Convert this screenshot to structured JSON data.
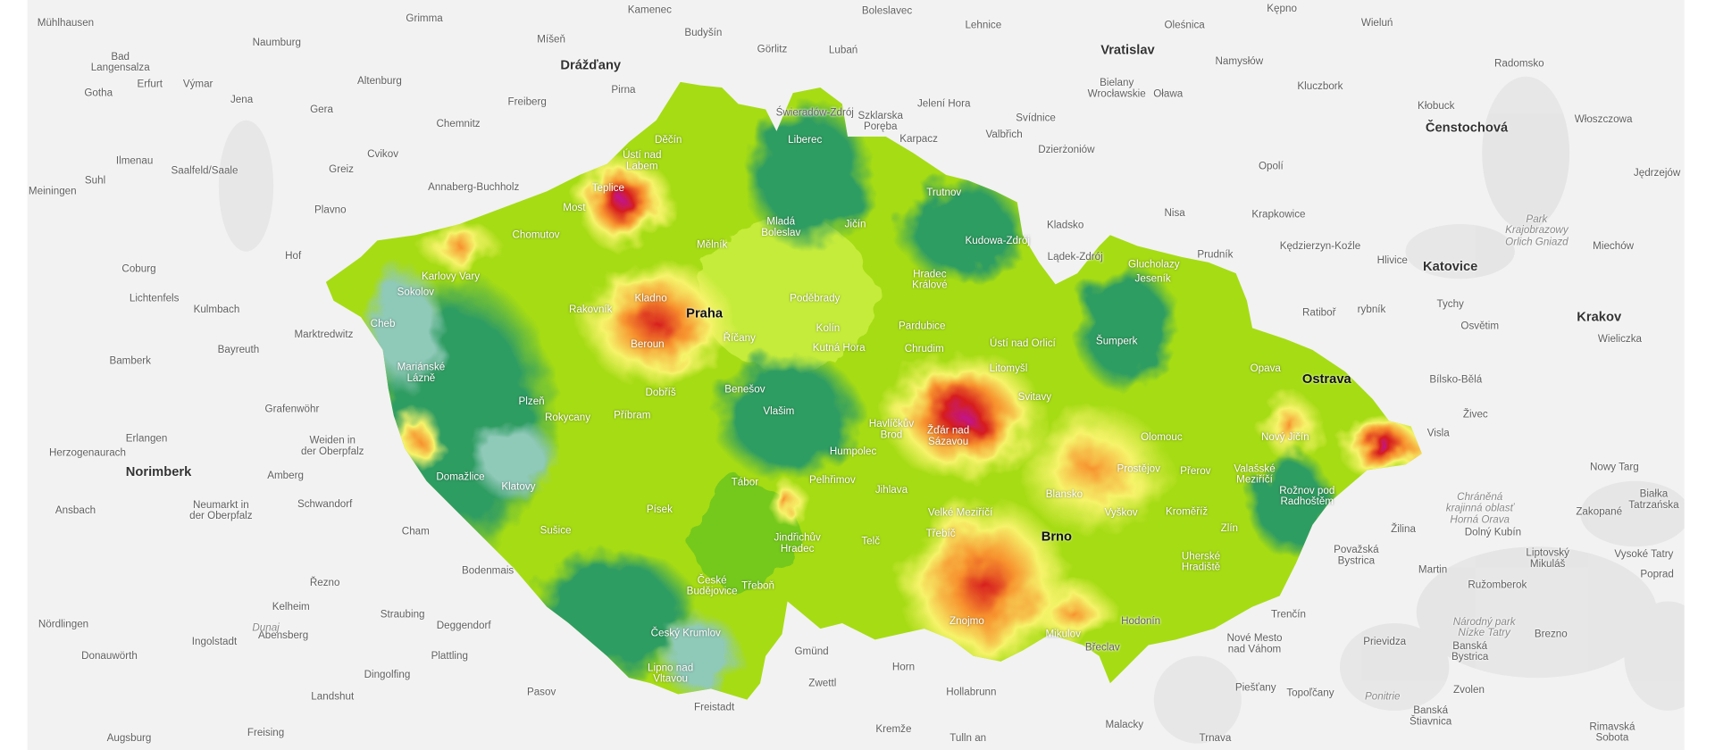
{
  "map": {
    "colors": {
      "background": "#f2f2f2",
      "low_teal": "#8fc9b8",
      "dark_green": "#2f9d62",
      "green": "#74c91a",
      "light_green": "#b5e61d",
      "yellow": "#f6f36a",
      "orange": "#f7922e",
      "red": "#d61e1e",
      "magenta": "#c0168f"
    },
    "cities": [
      {
        "name": "Mühlhausen"
      },
      {
        "name": "Bad\nLangensalza"
      },
      {
        "name": "Erfurt"
      },
      {
        "name": "Výmar"
      },
      {
        "name": "Gotha"
      },
      {
        "name": "Jena"
      },
      {
        "name": "Naumburg"
      },
      {
        "name": "Gera"
      },
      {
        "name": "Altenburg"
      },
      {
        "name": "Grimma"
      },
      {
        "name": "Chemnitz"
      },
      {
        "name": "Míšeň"
      },
      {
        "name": "Drážďany",
        "bold": true
      },
      {
        "name": "Freiberg"
      },
      {
        "name": "Pirna"
      },
      {
        "name": "Budyšín"
      },
      {
        "name": "Görlitz"
      },
      {
        "name": "Lubań"
      },
      {
        "name": "Kamenec"
      },
      {
        "name": "Boleslavec"
      },
      {
        "name": "Lehnice"
      },
      {
        "name": "Oleśnica"
      },
      {
        "name": "Kępno"
      },
      {
        "name": "Wieluń"
      },
      {
        "name": "Vratislav",
        "bold": true
      },
      {
        "name": "Namysłów"
      },
      {
        "name": "Radomsko"
      },
      {
        "name": "Bielany\nWrocławskie"
      },
      {
        "name": "Oława"
      },
      {
        "name": "Kluczbork"
      },
      {
        "name": "Kłobuck"
      },
      {
        "name": "Čenstochová",
        "bold": true
      },
      {
        "name": "Włoszczowa"
      },
      {
        "name": "Jelení Hora"
      },
      {
        "name": "Świeradów-Zdrój"
      },
      {
        "name": "Szklarska\nPoręba"
      },
      {
        "name": "Karpacz"
      },
      {
        "name": "Svídnice"
      },
      {
        "name": "Valbřich"
      },
      {
        "name": "Dzierżoniów"
      },
      {
        "name": "Opolí"
      },
      {
        "name": "Jędrzejów"
      },
      {
        "name": "Ilmenau"
      },
      {
        "name": "Saalfeld/Saale"
      },
      {
        "name": "Suhl"
      },
      {
        "name": "Meiningen"
      },
      {
        "name": "Greiz"
      },
      {
        "name": "Cvikov"
      },
      {
        "name": "Plavno"
      },
      {
        "name": "Annaberg-Buchholz"
      },
      {
        "name": "Děčín",
        "in": true
      },
      {
        "name": "Ústí nad\nLabem",
        "in": true
      },
      {
        "name": "Liberec",
        "in": true
      },
      {
        "name": "Teplice",
        "in": true
      },
      {
        "name": "Most",
        "in": true
      },
      {
        "name": "Chomutov",
        "in": true
      },
      {
        "name": "Trutnov",
        "in": true
      },
      {
        "name": "Kladsko"
      },
      {
        "name": "Nisa"
      },
      {
        "name": "Krapkowice"
      },
      {
        "name": "Park\nKrajobrazowy\nOrlich Gniazd",
        "it": true
      },
      {
        "name": "Mladá\nBoleslav",
        "in": true
      },
      {
        "name": "Jičín",
        "in": true
      },
      {
        "name": "Mělník",
        "in": true
      },
      {
        "name": "Kudowa-Zdrój",
        "in": true
      },
      {
        "name": "Kędzierzyn-Koźle"
      },
      {
        "name": "Prudník"
      },
      {
        "name": "Lądek-Zdrój"
      },
      {
        "name": "Hlivice"
      },
      {
        "name": "Katovice",
        "bold": true
      },
      {
        "name": "Miechów"
      },
      {
        "name": "Hof"
      },
      {
        "name": "Coburg"
      },
      {
        "name": "Karlovy Vary",
        "in": true
      },
      {
        "name": "Sokolov",
        "in": true
      },
      {
        "name": "Glucholazy",
        "in": true
      },
      {
        "name": "Jeseník",
        "in": true
      },
      {
        "name": "Hradec\nKrálové",
        "in": true
      },
      {
        "name": "Lichtenfels"
      },
      {
        "name": "Kulmbach"
      },
      {
        "name": "Poděbrady",
        "in": true
      },
      {
        "name": "Rakovník",
        "in": true
      },
      {
        "name": "Kladno",
        "in": true
      },
      {
        "name": "Praha",
        "bold": true,
        "in": true
      },
      {
        "name": "Ratiboř"
      },
      {
        "name": "rybník"
      },
      {
        "name": "Tychy"
      },
      {
        "name": "Krakov",
        "bold": true
      },
      {
        "name": "Osvětim"
      },
      {
        "name": "Wieliczka"
      },
      {
        "name": "Cheb",
        "in": true
      },
      {
        "name": "Kolín",
        "in": true
      },
      {
        "name": "Pardubice",
        "in": true
      },
      {
        "name": "Marktredwitz"
      },
      {
        "name": "Bayreuth"
      },
      {
        "name": "Říčany",
        "in": true
      },
      {
        "name": "Beroun",
        "in": true
      },
      {
        "name": "Kutná Hora",
        "in": true
      },
      {
        "name": "Chrudim",
        "in": true
      },
      {
        "name": "Ústí nad Orlicí",
        "in": true
      },
      {
        "name": "Šumperk",
        "in": true
      },
      {
        "name": "Bamberk"
      },
      {
        "name": "Mariánské\nLázně",
        "in": true
      },
      {
        "name": "Litomyšl",
        "in": true
      },
      {
        "name": "Opava",
        "in": true
      },
      {
        "name": "Ostrava",
        "bold": true,
        "in": true
      },
      {
        "name": "Bílsko-Bělá"
      },
      {
        "name": "Dobříš",
        "in": true
      },
      {
        "name": "Benešov",
        "in": true
      },
      {
        "name": "Svitavy",
        "in": true
      },
      {
        "name": "Grafenwöhr"
      },
      {
        "name": "Plzeň",
        "in": true
      },
      {
        "name": "Rokycany",
        "in": true
      },
      {
        "name": "Příbram",
        "in": true
      },
      {
        "name": "Vlašim",
        "in": true
      },
      {
        "name": "Havlíčkův\nBrod",
        "in": true
      },
      {
        "name": "Žďár nad\nSázavou",
        "in": true
      },
      {
        "name": "Živec"
      },
      {
        "name": "Visla"
      },
      {
        "name": "Erlangen"
      },
      {
        "name": "Weiden in\nder Oberpfalz"
      },
      {
        "name": "Olomouc",
        "in": true
      },
      {
        "name": "Nový Jičín",
        "in": true
      },
      {
        "name": "Herzogenaurach"
      },
      {
        "name": "Humpolec",
        "in": true
      },
      {
        "name": "Prostějov",
        "in": true
      },
      {
        "name": "Přerov",
        "in": true
      },
      {
        "name": "Valašské\nMeziříčí",
        "in": true
      },
      {
        "name": "Norimberk",
        "bold": true
      },
      {
        "name": "Amberg"
      },
      {
        "name": "Nowy Targ"
      },
      {
        "name": "Domažlice",
        "in": true
      },
      {
        "name": "Klatovy",
        "in": true
      },
      {
        "name": "Tábor",
        "in": true
      },
      {
        "name": "Pelhřimov",
        "in": true
      },
      {
        "name": "Jihlava",
        "in": true
      },
      {
        "name": "Blansko",
        "in": true
      },
      {
        "name": "Rožnov pod\nRadhoštěm",
        "in": true
      },
      {
        "name": "Ansbach"
      },
      {
        "name": "Neumarkt in\nder Oberpfalz"
      },
      {
        "name": "Schwandorf"
      },
      {
        "name": "Písek",
        "in": true
      },
      {
        "name": "Velké Meziříčí",
        "in": true
      },
      {
        "name": "Vyškov",
        "in": true
      },
      {
        "name": "Kroměříž",
        "in": true
      },
      {
        "name": "Zakopané"
      },
      {
        "name": "Chráněná\nkrajinná oblasť\nHorná Orava",
        "it": true
      },
      {
        "name": "Białka\nTatrzańska"
      },
      {
        "name": "Cham"
      },
      {
        "name": "Sušice",
        "in": true
      },
      {
        "name": "Žilina"
      },
      {
        "name": "Dolný Kubín"
      },
      {
        "name": "Jindřichův\nHradec",
        "in": true
      },
      {
        "name": "Telč",
        "in": true
      },
      {
        "name": "Třebíč",
        "in": true
      },
      {
        "name": "Brno",
        "bold": true,
        "in": true
      },
      {
        "name": "Zlín",
        "in": true
      },
      {
        "name": "Uherské\nHradiště",
        "in": true
      },
      {
        "name": "Považská\nBystrica"
      },
      {
        "name": "Liptovský\nMikuláš"
      },
      {
        "name": "Vysoké Tatry"
      },
      {
        "name": "Bodenmais"
      },
      {
        "name": "Řezno"
      },
      {
        "name": "České\nBudějovice",
        "in": true
      },
      {
        "name": "Třeboň",
        "in": true
      },
      {
        "name": "Martin"
      },
      {
        "name": "Poprad"
      },
      {
        "name": "Ružomberok"
      },
      {
        "name": "Kelheim"
      },
      {
        "name": "Straubing"
      },
      {
        "name": "Deggendorf"
      },
      {
        "name": "Trenčín"
      },
      {
        "name": "Znojmo",
        "in": true
      },
      {
        "name": "Hodonín"
      },
      {
        "name": "Nördlingen"
      },
      {
        "name": "Abensberg"
      },
      {
        "name": "Český Krumlov",
        "in": true
      },
      {
        "name": "Mikulov",
        "in": true
      },
      {
        "name": "Nové Mesto\nnad Váhom"
      },
      {
        "name": "Národný park\nNízke Tatry",
        "it": true
      },
      {
        "name": "Brezno"
      },
      {
        "name": "Banská\nBystrica"
      },
      {
        "name": "Ingolstadt"
      },
      {
        "name": "Donauwörth"
      },
      {
        "name": "Plattling"
      },
      {
        "name": "Gmünd"
      },
      {
        "name": "Břeclav"
      },
      {
        "name": "Prievidza"
      },
      {
        "name": "Lipno nad\nVltavou",
        "in": true
      },
      {
        "name": "Dingolfing"
      },
      {
        "name": "Horn"
      },
      {
        "name": "Landshut"
      },
      {
        "name": "Pasov"
      },
      {
        "name": "Zwettl"
      },
      {
        "name": "Hollabrunn"
      },
      {
        "name": "Piešťany"
      },
      {
        "name": "Topoľčany"
      },
      {
        "name": "Ponitrie",
        "it": true
      },
      {
        "name": "Zvolen"
      },
      {
        "name": "Freistadt"
      },
      {
        "name": "Augsburg"
      },
      {
        "name": "Freising"
      },
      {
        "name": "Kremže"
      },
      {
        "name": "Tulln an"
      },
      {
        "name": "Malacky"
      },
      {
        "name": "Trnava"
      },
      {
        "name": "Banská\nŠtiavnica"
      },
      {
        "name": "Rimavská\nSobota"
      },
      {
        "name": "Dunaj",
        "it": true
      }
    ]
  }
}
